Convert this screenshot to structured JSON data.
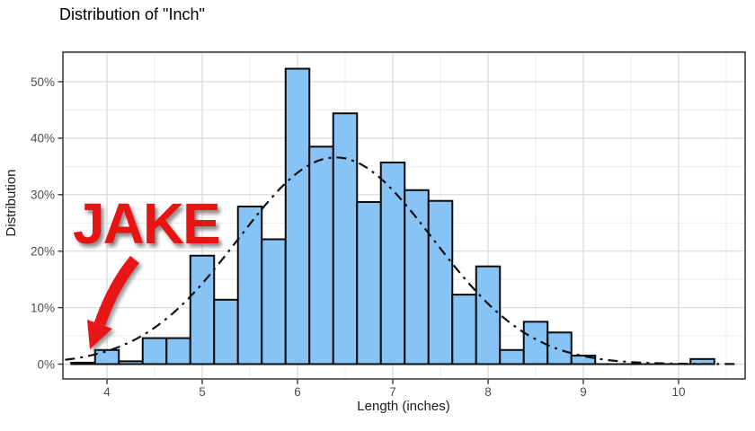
{
  "chart_data": {
    "type": "bar",
    "subtype": "histogram-with-normal-curve",
    "title": "Distribution of \"Inch\"",
    "xlabel": "Length (inches)",
    "ylabel": "Distribution",
    "bin_width": 0.25,
    "bin_centers": [
      3.75,
      4.0,
      4.25,
      4.5,
      4.75,
      5.0,
      5.25,
      5.5,
      5.75,
      6.0,
      6.25,
      6.5,
      6.75,
      7.0,
      7.25,
      7.5,
      7.75,
      8.0,
      8.25,
      8.5,
      8.75,
      9.0,
      9.25,
      9.5,
      9.75,
      10.0,
      10.25
    ],
    "values_percent": [
      0.25,
      2.5,
      0.5,
      4.6,
      4.6,
      19.2,
      11.4,
      27.9,
      22.1,
      52.3,
      38.5,
      44.4,
      28.7,
      35.7,
      30.8,
      28.9,
      12.3,
      17.3,
      2.5,
      7.5,
      5.6,
      1.5,
      0,
      0,
      0,
      0,
      0.9
    ],
    "x_ticks": [
      4,
      5,
      6,
      7,
      8,
      9,
      10
    ],
    "y_ticks_percent": [
      0,
      10,
      20,
      30,
      40,
      50
    ],
    "y_tick_suffix": "%",
    "xlim": [
      3.54,
      10.7
    ],
    "ylim_percent": [
      -2.6,
      55.2
    ],
    "grid": "major-and-minor",
    "legend_position": "none",
    "bar_fill": "#87c4f5",
    "bar_stroke": "#0a0a0a",
    "panel_border_color": "#404040",
    "major_grid_color": "#d9d9d9",
    "minor_grid_color": "#ececec",
    "tick_label_color": "#4d4d4d",
    "normal_curve": {
      "style": "dash-dot",
      "color": "#111111",
      "mean": 6.4,
      "sd": 1.02,
      "peak_percent": 36.6
    },
    "annotation": {
      "text": "JAKE",
      "color": "#e81313",
      "arrow_color": "#e81313",
      "points_to_bin_center": 3.75,
      "points_to_value_percent": 0.25
    }
  }
}
